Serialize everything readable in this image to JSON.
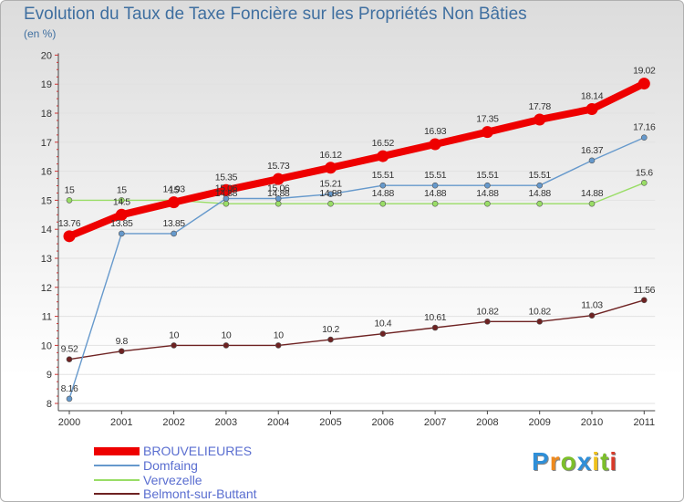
{
  "header": {
    "title": "Evolution du Taux de Taxe Foncière sur les Propriétés Non Bâties",
    "unit": "(en %)"
  },
  "chart_data": {
    "type": "line",
    "title": "Evolution du Taux de Taxe Foncière sur les Propriétés Non Bâties",
    "ylabel": "(en %)",
    "xlabel": "",
    "ylim": [
      8,
      20
    ],
    "yticks": [
      "8",
      "9",
      "10",
      "11",
      "12",
      "13",
      "14",
      "15",
      "16",
      "17",
      "18",
      "19",
      "20"
    ],
    "categories": [
      "2000",
      "2001",
      "2002",
      "2003",
      "2004",
      "2005",
      "2006",
      "2007",
      "2008",
      "2009",
      "2010",
      "2011"
    ],
    "series": [
      {
        "name": "Belmont-sur-Buttant",
        "color": "#6e2222",
        "values": [
          9.52,
          9.8,
          10,
          10,
          10,
          10.2,
          10.4,
          10.61,
          10.82,
          10.82,
          11.03,
          11.56
        ],
        "labels": [
          "9.52",
          "9.8",
          "10",
          "10",
          "10",
          "10.2",
          "10.4",
          "10.61",
          "10.82",
          "10.82",
          "11.03",
          "11.56"
        ]
      },
      {
        "name": "Vervezelle",
        "color": "#99dd66",
        "values": [
          15,
          15,
          15,
          14.88,
          14.88,
          14.88,
          14.88,
          14.88,
          14.88,
          14.88,
          14.88,
          15.6
        ],
        "labels": [
          "15",
          "15",
          "15",
          "14.88",
          "14.88",
          "14.88",
          "14.88",
          "14.88",
          "14.88",
          "14.88",
          "14.88",
          "15.6"
        ]
      },
      {
        "name": "Domfaing",
        "color": "#6699cc",
        "values": [
          8.16,
          13.85,
          13.85,
          15.06,
          15.06,
          15.21,
          15.51,
          15.51,
          15.51,
          15.51,
          16.37,
          17.16
        ],
        "labels": [
          "8.16",
          "13.85",
          "13.85",
          "15.06",
          "15.06",
          "15.21",
          "15.51",
          "15.51",
          "15.51",
          "15.51",
          "16.37",
          "17.16"
        ]
      },
      {
        "name": "BROUVELIEURES",
        "color": "#ee0000",
        "values": [
          13.76,
          14.5,
          14.93,
          15.35,
          15.73,
          16.12,
          16.52,
          16.93,
          17.35,
          17.78,
          18.14,
          19.02
        ],
        "labels": [
          "13.76",
          "14.5",
          "14.93",
          "15.35",
          "15.73",
          "16.12",
          "16.52",
          "16.93",
          "17.35",
          "17.78",
          "18.14",
          "19.02"
        ]
      }
    ],
    "legend_position": "bottom-left"
  },
  "legend": {
    "items": [
      {
        "label": "BROUVELIEURES",
        "color": "#ee0000"
      },
      {
        "label": "Domfaing",
        "color": "#6699cc"
      },
      {
        "label": "Vervezelle",
        "color": "#99dd66"
      },
      {
        "label": "Belmont-sur-Buttant",
        "color": "#6e2222"
      }
    ]
  },
  "logo": {
    "letters": [
      "P",
      "r",
      "o",
      "x",
      "i",
      "t",
      "i"
    ],
    "colors": [
      "#2f8fd8",
      "#f08a1c",
      "#7cbf2a",
      "#2f8fd8",
      "#f0c21c",
      "#7cbf2a",
      "#d83a2a"
    ]
  }
}
